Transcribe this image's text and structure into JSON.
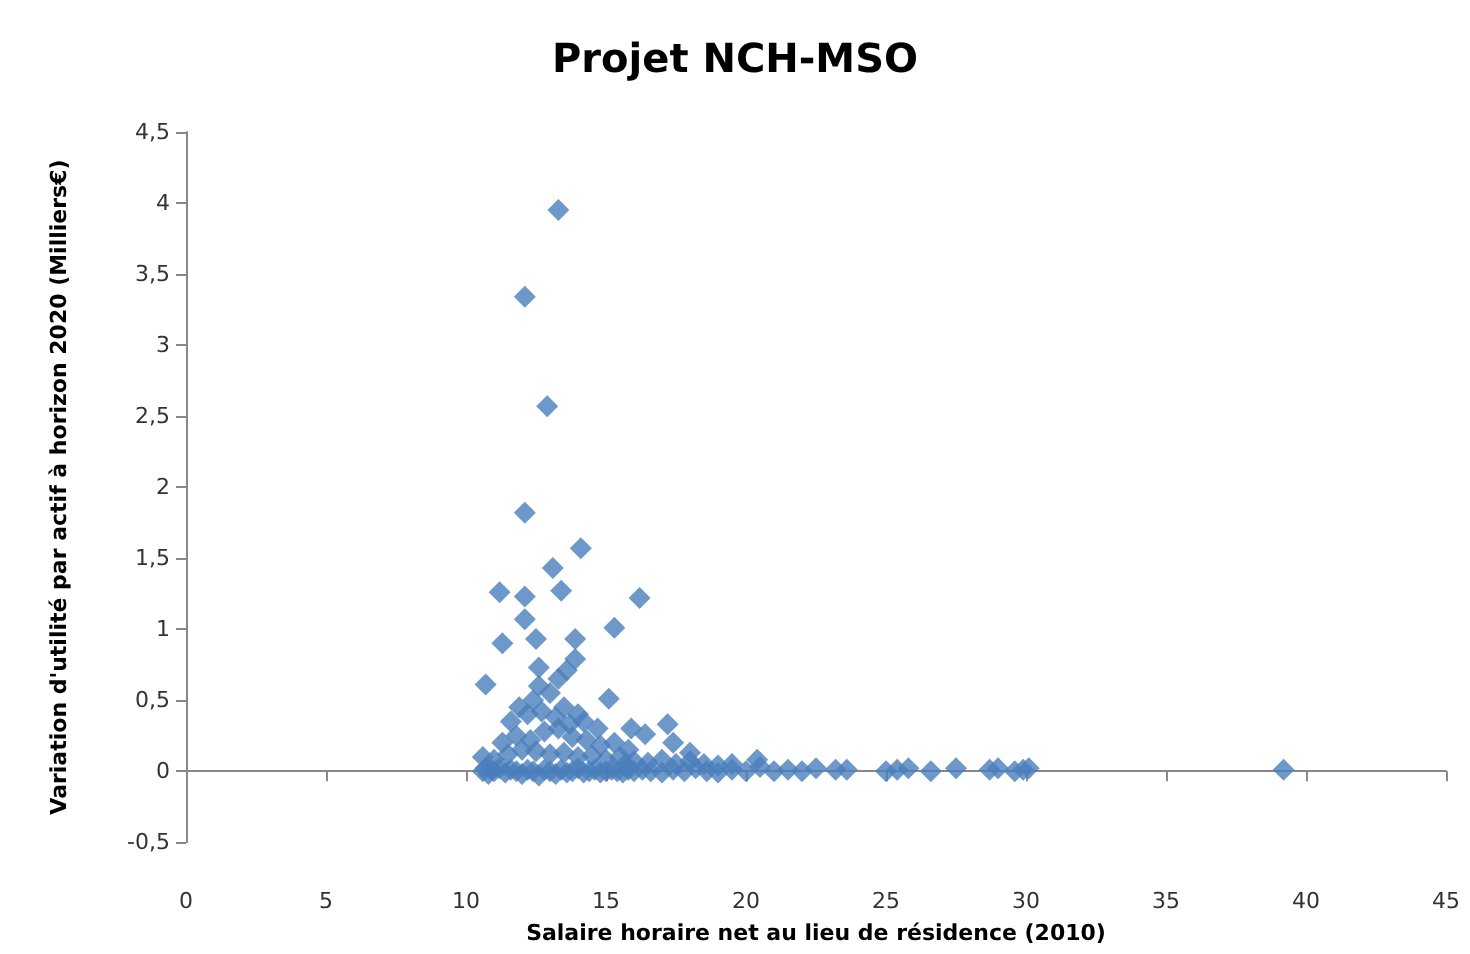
{
  "chart_data": {
    "type": "scatter",
    "title": "Projet NCH-MSO",
    "xlabel": "Salaire horaire net au lieu de résidence (2010)",
    "ylabel": "Variation d'utilité par actif à horizon 2020 (Milliers€)",
    "xlim": [
      0,
      45
    ],
    "xticks": [
      0,
      5,
      10,
      15,
      20,
      25,
      30,
      35,
      40,
      45
    ],
    "ylim": [
      -0.5,
      4.5
    ],
    "yticks": [
      {
        "value": -0.5,
        "label": "-0,5"
      },
      0,
      {
        "value": 0.5,
        "label": "0,5"
      },
      1,
      {
        "value": 1.5,
        "label": "1,5"
      },
      2,
      {
        "value": 2.5,
        "label": "2,5"
      },
      3,
      {
        "value": 3.5,
        "label": "3,5"
      },
      4,
      {
        "value": 4.5,
        "label": "4,5"
      }
    ],
    "marker": "diamond",
    "series": [
      {
        "color": "#4a7ebb",
        "x": [
          13.3,
          12.1,
          12.9,
          12.1,
          14.1,
          13.1,
          11.2,
          12.1,
          13.4,
          16.2,
          15.3,
          12.1,
          12.5,
          13.9,
          11.3,
          10.7,
          12.6,
          13.6,
          13.9,
          15.1,
          10.6,
          10.7,
          10.8,
          10.9,
          11,
          11.2,
          11.4,
          11.6,
          11.8,
          12,
          12.2,
          12.4,
          12.6,
          12.8,
          13,
          13.2,
          13.4,
          13.6,
          13.8,
          14,
          14.2,
          14.4,
          14.6,
          14.8,
          15,
          15.2,
          15.4,
          15.6,
          15.8,
          16,
          16.3,
          16.6,
          17,
          17.4,
          17.8,
          18.2,
          18.6,
          19,
          19.5,
          20,
          20.5,
          21,
          21.5,
          22,
          22.5,
          23.2,
          23.6,
          25,
          25.4,
          25.8,
          26.6,
          27.5,
          28.7,
          29,
          29.6,
          29.9,
          30.1,
          39.2,
          10.6,
          11,
          11.5,
          12,
          12.5,
          13,
          13.5,
          14,
          14.5,
          15,
          15.5,
          16,
          16.5,
          17,
          17.5,
          18,
          18.5,
          19,
          19.5,
          20.4,
          11.3,
          11.8,
          12.3,
          12.8,
          13.3,
          13.8,
          14.3,
          14.8,
          15.3,
          15.8,
          16.4,
          17.2,
          18,
          11.6,
          12.2,
          12.7,
          13.2,
          13.7,
          14.2,
          14.7,
          15.9,
          17.4,
          12.4,
          13,
          13.5,
          14,
          15.7,
          11.9,
          12.6,
          13.3
        ],
        "values": [
          3.95,
          3.34,
          2.57,
          1.82,
          1.57,
          1.43,
          1.26,
          1.23,
          1.27,
          1.22,
          1.01,
          1.07,
          0.93,
          0.93,
          0.9,
          0.61,
          0.73,
          0.71,
          0.79,
          0.51,
          0,
          0.02,
          -0.02,
          0.01,
          0,
          0.02,
          -0.01,
          0.01,
          0,
          -0.02,
          0.01,
          0,
          -0.03,
          0.01,
          0,
          -0.02,
          0.01,
          -0.01,
          0,
          0.02,
          -0.01,
          0,
          0.01,
          -0.01,
          0,
          0.01,
          0,
          -0.01,
          0.01,
          0,
          0.01,
          0,
          -0.01,
          0.01,
          0,
          0.02,
          0,
          -0.01,
          0.01,
          0,
          0.03,
          0,
          0.01,
          0,
          0.02,
          0.01,
          0.01,
          0,
          0.01,
          0.02,
          0,
          0.02,
          0.01,
          0.02,
          0,
          0.01,
          0.02,
          0.01,
          0.1,
          0.08,
          0.12,
          0.15,
          0.14,
          0.12,
          0.13,
          0.1,
          0.11,
          0.08,
          0.1,
          0.07,
          0.06,
          0.08,
          0.05,
          0.07,
          0.05,
          0.04,
          0.05,
          0.08,
          0.2,
          0.25,
          0.22,
          0.28,
          0.3,
          0.24,
          0.22,
          0.18,
          0.2,
          0.15,
          0.26,
          0.33,
          0.13,
          0.35,
          0.4,
          0.42,
          0.38,
          0.33,
          0.35,
          0.3,
          0.3,
          0.2,
          0.5,
          0.55,
          0.45,
          0.4,
          0.05,
          0.45,
          0.6,
          0.65
        ]
      }
    ]
  }
}
